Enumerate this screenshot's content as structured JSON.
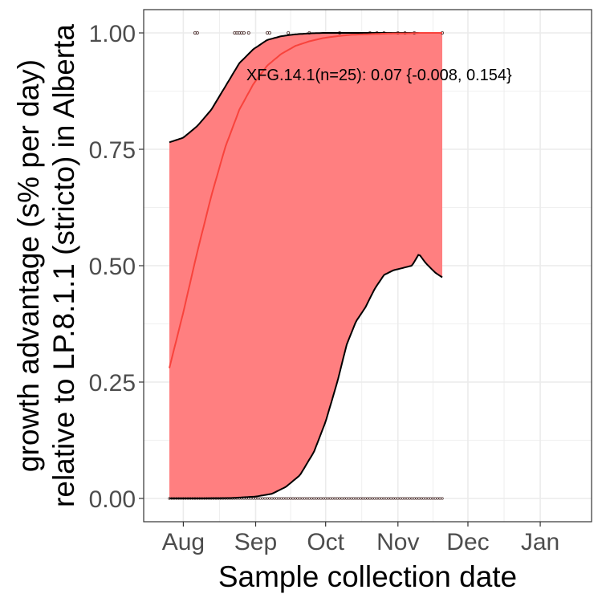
{
  "chart_data": {
    "type": "line",
    "xlabel": "Sample collection date",
    "ylabel_lines": [
      "growth advantage (s% per day)",
      "relative to LP.8.1.1 (stricto) in Alberta"
    ],
    "ylim": [
      -0.05,
      1.05
    ],
    "yticks": [
      0.0,
      0.25,
      0.5,
      0.75,
      1.0
    ],
    "ytick_labels": [
      "0.00",
      "0.25",
      "0.50",
      "0.75",
      "1.00"
    ],
    "xlim": [
      "2025-07-15",
      "2026-01-23"
    ],
    "xticks": [
      "2025-08-01",
      "2025-09-01",
      "2025-10-01",
      "2025-11-01",
      "2025-12-01",
      "2026-01-01"
    ],
    "xtick_labels": [
      "Aug",
      "Sep",
      "Oct",
      "Nov",
      "Dec",
      "Jan"
    ],
    "grid": true,
    "annotation": "XFG.14.1(n=25): 0.07 {-0.008, 0.154}",
    "annotation_anchor": {
      "x": "2025-08-28",
      "y": 0.91
    },
    "colors": {
      "fit": "#f8433c",
      "ribbon": "#ff7f80",
      "bound": "#000000",
      "points": "#4a2c2a",
      "grid": "#ebebeb",
      "panel_border": "#333333"
    },
    "series": [
      {
        "role": "fit",
        "x": [
          "2025-07-26",
          "2025-08-01",
          "2025-08-07",
          "2025-08-13",
          "2025-08-19",
          "2025-08-25",
          "2025-08-31",
          "2025-09-06",
          "2025-09-12",
          "2025-09-18",
          "2025-09-24",
          "2025-09-30",
          "2025-10-06",
          "2025-10-12",
          "2025-10-18",
          "2025-10-24",
          "2025-10-30",
          "2025-11-05",
          "2025-11-11",
          "2025-11-17",
          "2025-11-20"
        ],
        "y": [
          0.28,
          0.4,
          0.53,
          0.65,
          0.755,
          0.835,
          0.89,
          0.93,
          0.955,
          0.972,
          0.982,
          0.989,
          0.993,
          0.996,
          0.997,
          0.998,
          0.999,
          0.999,
          1.0,
          1.0,
          1.0
        ]
      },
      {
        "role": "upper-bound",
        "x": [
          "2025-07-26",
          "2025-08-01",
          "2025-08-07",
          "2025-08-13",
          "2025-08-19",
          "2025-08-25",
          "2025-08-31",
          "2025-09-06",
          "2025-09-12",
          "2025-09-18",
          "2025-09-24",
          "2025-09-30",
          "2025-10-06",
          "2025-10-12",
          "2025-10-18",
          "2025-10-24",
          "2025-10-30",
          "2025-11-05",
          "2025-11-11",
          "2025-11-17",
          "2025-11-20"
        ],
        "y": [
          0.765,
          0.775,
          0.8,
          0.835,
          0.885,
          0.935,
          0.965,
          0.985,
          0.993,
          0.997,
          0.999,
          1.0,
          1.0,
          1.0,
          1.0,
          1.0,
          1.0,
          1.0,
          1.0,
          1.0,
          1.0
        ]
      },
      {
        "role": "lower-bound",
        "x": [
          "2025-07-26",
          "2025-08-10",
          "2025-08-22",
          "2025-09-01",
          "2025-09-08",
          "2025-09-14",
          "2025-09-20",
          "2025-09-26",
          "2025-10-01",
          "2025-10-06",
          "2025-10-10",
          "2025-10-14",
          "2025-10-18",
          "2025-10-22",
          "2025-10-26",
          "2025-10-30",
          "2025-11-03",
          "2025-11-07",
          "2025-11-10",
          "2025-11-13",
          "2025-11-17",
          "2025-11-20"
        ],
        "y": [
          0.0,
          0.0,
          0.001,
          0.004,
          0.01,
          0.025,
          0.05,
          0.1,
          0.165,
          0.25,
          0.33,
          0.38,
          0.41,
          0.45,
          0.48,
          0.49,
          0.495,
          0.5,
          0.525,
          0.505,
          0.485,
          0.475
        ]
      }
    ],
    "points": {
      "y1_x": [
        "2025-08-06",
        "2025-08-07",
        "2025-08-23",
        "2025-08-24",
        "2025-08-25",
        "2025-08-26",
        "2025-08-27",
        "2025-08-29",
        "2025-09-06",
        "2025-09-07",
        "2025-09-15",
        "2025-09-24",
        "2025-10-07",
        "2025-10-20",
        "2025-10-23",
        "2025-10-26",
        "2025-11-01",
        "2025-11-04",
        "2025-11-08",
        "2025-11-20"
      ],
      "y0_from": "2025-07-26",
      "y0_to": "2025-11-20"
    }
  }
}
